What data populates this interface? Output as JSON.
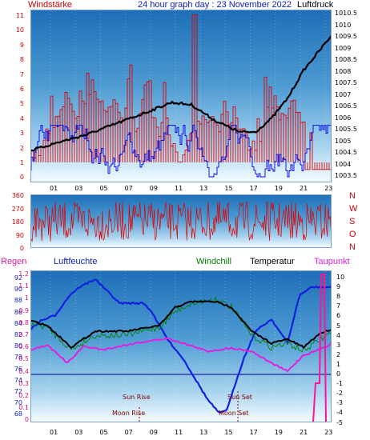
{
  "header": {
    "wind_label": "Windstärke",
    "title": "24 hour graph day : 23 November 2022",
    "pressure_label": "Luftdruck"
  },
  "wind_axis": [
    "11",
    "10",
    "9",
    "8",
    "7",
    "6",
    "5",
    "4",
    "3",
    "2",
    "1",
    "0"
  ],
  "pressure_axis": [
    "1010.5",
    "1010",
    "1009.5",
    "1009",
    "1008.5",
    "1008",
    "1007.5",
    "1007",
    "1006.5",
    "1006",
    "1005.5",
    "1005",
    "1004.5",
    "1004",
    "1003.5"
  ],
  "hours": [
    "01",
    "03",
    "05",
    "07",
    "09",
    "11",
    "13",
    "15",
    "17",
    "19",
    "21",
    "23"
  ],
  "direction_axis": [
    "360",
    "270",
    "180",
    "90",
    "0"
  ],
  "direction_letters": [
    "N",
    "W",
    "S",
    "O",
    "N"
  ],
  "legend": {
    "rain": "Regen",
    "humidity": "Luftfeuchte",
    "windchill": "Windchill",
    "temperature": "Temperatur",
    "dewpoint": "Taupunkt"
  },
  "humidity_axis": [
    "92",
    "90",
    "88",
    "86",
    "84",
    "82",
    "80",
    "78",
    "76",
    "74",
    "72",
    "70",
    "68"
  ],
  "rain_axis": [
    "1.2",
    "1.1",
    "1",
    "0.9",
    "0.8",
    "0.7",
    "0.6",
    "0.5",
    "0.4",
    "0.3",
    "0.2",
    "0.1",
    "0"
  ],
  "temp_axis": [
    "10",
    "9",
    "8",
    "7",
    "6",
    "5",
    "4",
    "3",
    "2",
    "1",
    "0",
    "-1",
    "-2",
    "-3",
    "-4",
    "-5"
  ],
  "events": {
    "sun_rise": "Sun Rise",
    "moon_rise": "Moon Rise",
    "sun_set": "Sun Set",
    "moon_set": "Moon Set"
  },
  "colors": {
    "wind": "#e00000",
    "gust_blue": "#0000e0",
    "pressure": "#000000",
    "humidity": "#1020e0",
    "windchill": "#008000",
    "temperature": "#000000",
    "dewpoint": "#e020e0",
    "rain": "#ff1493"
  }
}
